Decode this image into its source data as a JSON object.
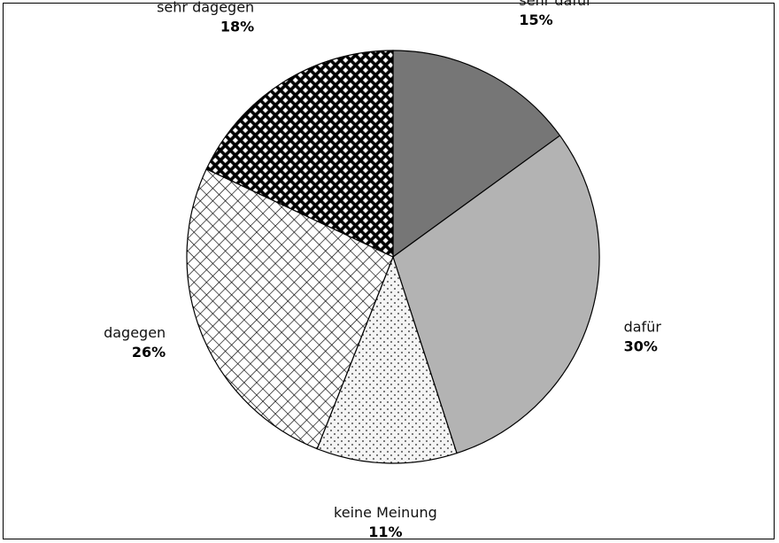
{
  "chart_data": {
    "type": "pie",
    "slices": [
      {
        "label": "sehr dafür",
        "value": 15,
        "value_label": "15%",
        "fill": "#767676",
        "pattern": "solid"
      },
      {
        "label": "dafür",
        "value": 30,
        "value_label": "30%",
        "fill": "#b3b3b3",
        "pattern": "solid"
      },
      {
        "label": "keine Meinung",
        "value": 11,
        "value_label": "11%",
        "fill": "#f2f2f2",
        "pattern": "dots"
      },
      {
        "label": "dagegen",
        "value": 26,
        "value_label": "26%",
        "fill": "#ffffff",
        "pattern": "crosshatch"
      },
      {
        "label": "sehr dagegen",
        "value": 18,
        "value_label": "18%",
        "fill": "#000000",
        "pattern": "dense-checker"
      }
    ],
    "start_angle": "12 o'clock",
    "direction": "clockwise",
    "legend": "none",
    "labels": "outside"
  }
}
